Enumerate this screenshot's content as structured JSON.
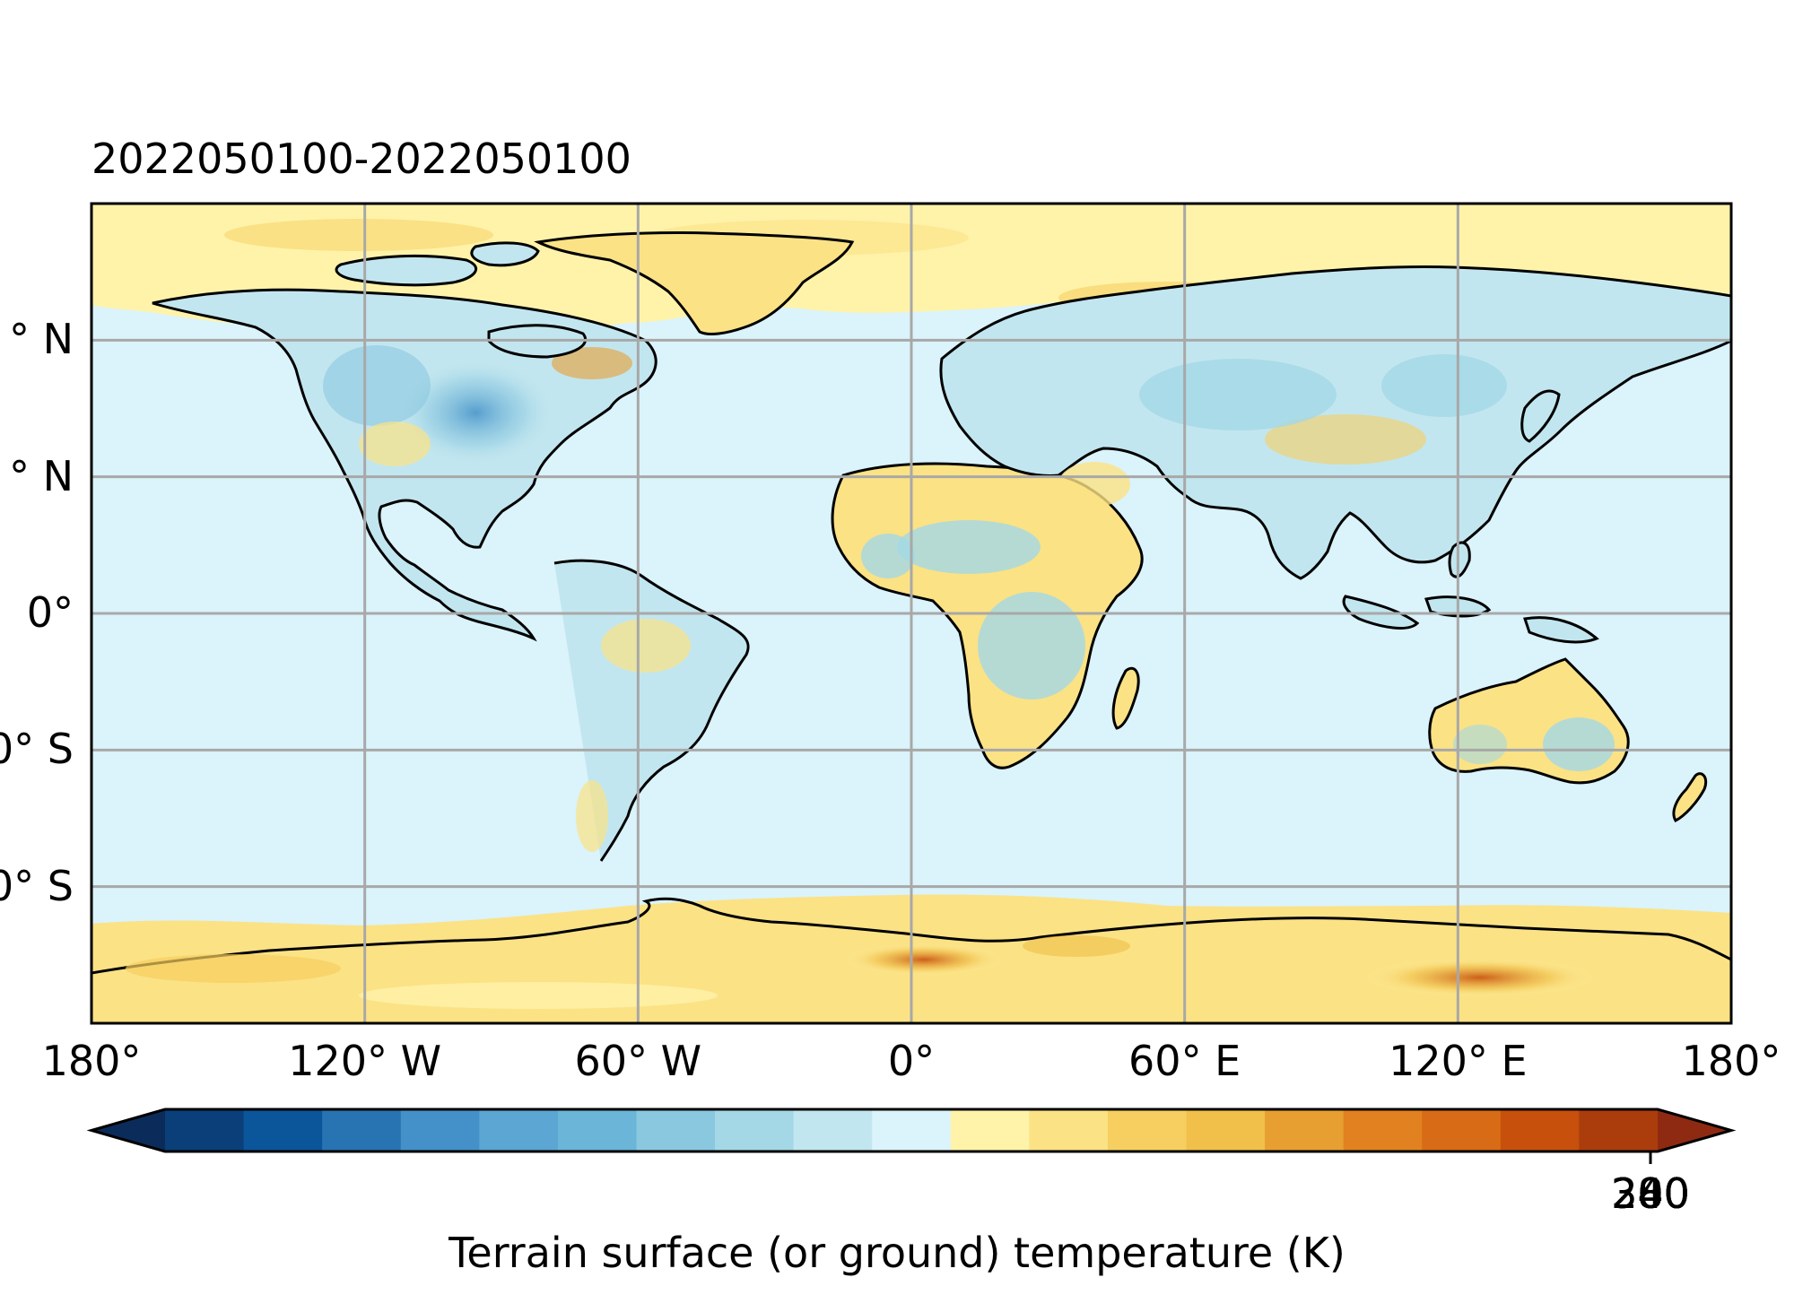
{
  "map": {
    "title": "2022050100-2022050100",
    "colors": {
      "ocean": "#dbf3fb",
      "coastline": "#000000",
      "gridline": "#a8a8a8",
      "frame": "#000000"
    },
    "lat_ticks": [
      "° N",
      "° N",
      "0°",
      "0° S",
      "0° S"
    ],
    "lon_ticks": [
      "180°",
      "120° W",
      "60° W",
      "0°",
      "60° E",
      "120° E",
      "180°"
    ]
  },
  "colorbar": {
    "label": "Terrain surface (or ground) temperature (K)",
    "tick_label": "2̸̴̲0",
    "tick_label_overlap": [
      "200",
      "240",
      "280",
      "300"
    ],
    "colors": [
      "#0b2c5a",
      "#0a3f7a",
      "#0b559a",
      "#2873b2",
      "#4391c8",
      "#5ba6d2",
      "#6ab5d8",
      "#8ac8e0",
      "#a4d8e6",
      "#c2e6ef",
      "#dbf3fb",
      "#fff3aa",
      "#fbe285",
      "#f6cf60",
      "#f0c04a",
      "#e79f32",
      "#e2811f",
      "#d86b16",
      "#c7500c",
      "#ab3d0c",
      "#8f2a12"
    ],
    "extend": "both"
  }
}
